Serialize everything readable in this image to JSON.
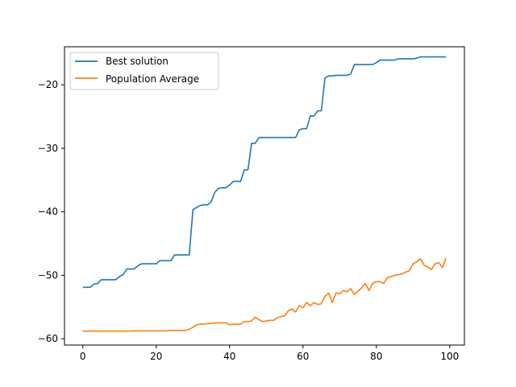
{
  "chart_data": {
    "type": "line",
    "title": "",
    "xlabel": "",
    "ylabel": "",
    "xlim": [
      -5,
      104
    ],
    "ylim": [
      -61,
      -14
    ],
    "xticks": [
      0,
      20,
      40,
      60,
      80,
      100
    ],
    "yticks": [
      -60,
      -50,
      -40,
      -30,
      -20
    ],
    "grid": false,
    "legend_position": "upper-left",
    "series": [
      {
        "name": "Best solution",
        "color": "#1f77b4",
        "x": [
          0,
          1,
          2,
          3,
          4,
          5,
          6,
          7,
          8,
          9,
          10,
          11,
          12,
          13,
          14,
          15,
          16,
          17,
          18,
          19,
          20,
          21,
          22,
          23,
          24,
          25,
          26,
          27,
          28,
          29,
          30,
          31,
          32,
          33,
          34,
          35,
          36,
          37,
          38,
          39,
          40,
          41,
          42,
          43,
          44,
          45,
          46,
          47,
          48,
          49,
          50,
          51,
          52,
          53,
          54,
          55,
          56,
          57,
          58,
          59,
          60,
          61,
          62,
          63,
          64,
          65,
          66,
          67,
          68,
          69,
          70,
          71,
          72,
          73,
          74,
          75,
          76,
          77,
          78,
          79,
          80,
          81,
          82,
          83,
          84,
          85,
          86,
          87,
          88,
          89,
          90,
          91,
          92,
          93,
          94,
          95,
          96,
          97,
          98,
          99
        ],
        "y": [
          -51.9,
          -51.9,
          -51.9,
          -51.4,
          -51.3,
          -50.7,
          -50.7,
          -50.7,
          -50.7,
          -50.7,
          -50.2,
          -49.9,
          -49.0,
          -49.0,
          -49.0,
          -48.5,
          -48.2,
          -48.2,
          -48.2,
          -48.2,
          -48.2,
          -47.7,
          -47.7,
          -47.7,
          -47.7,
          -46.8,
          -46.8,
          -46.8,
          -46.8,
          -46.8,
          -39.7,
          -39.3,
          -39.0,
          -38.9,
          -38.9,
          -38.4,
          -36.9,
          -36.3,
          -36.2,
          -36.2,
          -35.8,
          -35.2,
          -35.2,
          -35.2,
          -33.4,
          -33.4,
          -29.2,
          -29.2,
          -28.3,
          -28.3,
          -28.3,
          -28.3,
          -28.3,
          -28.3,
          -28.3,
          -28.3,
          -28.3,
          -28.3,
          -28.3,
          -27.1,
          -26.9,
          -26.9,
          -24.9,
          -24.9,
          -24.1,
          -24.1,
          -18.9,
          -18.6,
          -18.6,
          -18.5,
          -18.5,
          -18.5,
          -18.5,
          -18.3,
          -16.8,
          -16.8,
          -16.8,
          -16.8,
          -16.8,
          -16.8,
          -16.5,
          -16.1,
          -16.1,
          -16.1,
          -16.1,
          -16.1,
          -15.9,
          -15.9,
          -15.9,
          -15.9,
          -15.9,
          -15.8,
          -15.6,
          -15.6,
          -15.6,
          -15.6,
          -15.6,
          -15.6,
          -15.6,
          -15.6
        ]
      },
      {
        "name": "Population Average",
        "color": "#ff7f0e",
        "x": [
          0,
          1,
          2,
          3,
          4,
          5,
          6,
          7,
          8,
          9,
          10,
          11,
          12,
          13,
          14,
          15,
          16,
          17,
          18,
          19,
          20,
          21,
          22,
          23,
          24,
          25,
          26,
          27,
          28,
          29,
          30,
          31,
          32,
          33,
          34,
          35,
          36,
          37,
          38,
          39,
          40,
          41,
          42,
          43,
          44,
          45,
          46,
          47,
          48,
          49,
          50,
          51,
          52,
          53,
          54,
          55,
          56,
          57,
          58,
          59,
          60,
          61,
          62,
          63,
          64,
          65,
          66,
          67,
          68,
          69,
          70,
          71,
          72,
          73,
          74,
          75,
          76,
          77,
          78,
          79,
          80,
          81,
          82,
          83,
          84,
          85,
          86,
          87,
          88,
          89,
          90,
          91,
          92,
          93,
          94,
          95,
          96,
          97,
          98,
          99
        ],
        "y": [
          -58.8,
          -58.8,
          -58.8,
          -58.8,
          -58.8,
          -58.8,
          -58.8,
          -58.8,
          -58.8,
          -58.8,
          -58.8,
          -58.8,
          -58.8,
          -58.8,
          -58.75,
          -58.75,
          -58.75,
          -58.75,
          -58.75,
          -58.75,
          -58.75,
          -58.75,
          -58.75,
          -58.75,
          -58.7,
          -58.7,
          -58.7,
          -58.7,
          -58.7,
          -58.5,
          -58.2,
          -57.8,
          -57.7,
          -57.7,
          -57.6,
          -57.6,
          -57.5,
          -57.5,
          -57.5,
          -57.5,
          -57.8,
          -57.7,
          -57.7,
          -57.7,
          -57.3,
          -57.3,
          -57.2,
          -56.6,
          -57.0,
          -57.3,
          -57.2,
          -57.1,
          -57.1,
          -56.7,
          -56.5,
          -56.4,
          -55.6,
          -55.3,
          -55.8,
          -54.8,
          -55.1,
          -54.3,
          -54.8,
          -54.3,
          -54.6,
          -54.5,
          -53.3,
          -52.8,
          -54.3,
          -52.8,
          -52.9,
          -52.4,
          -52.6,
          -52.1,
          -53.0,
          -52.5,
          -52.0,
          -51.3,
          -52.4,
          -51.3,
          -51.0,
          -51.0,
          -51.3,
          -50.4,
          -50.2,
          -50.0,
          -49.9,
          -49.8,
          -49.5,
          -49.3,
          -48.2,
          -47.9,
          -47.4,
          -48.4,
          -48.7,
          -49.1,
          -48.2,
          -48.0,
          -48.8,
          -47.3
        ]
      }
    ]
  }
}
